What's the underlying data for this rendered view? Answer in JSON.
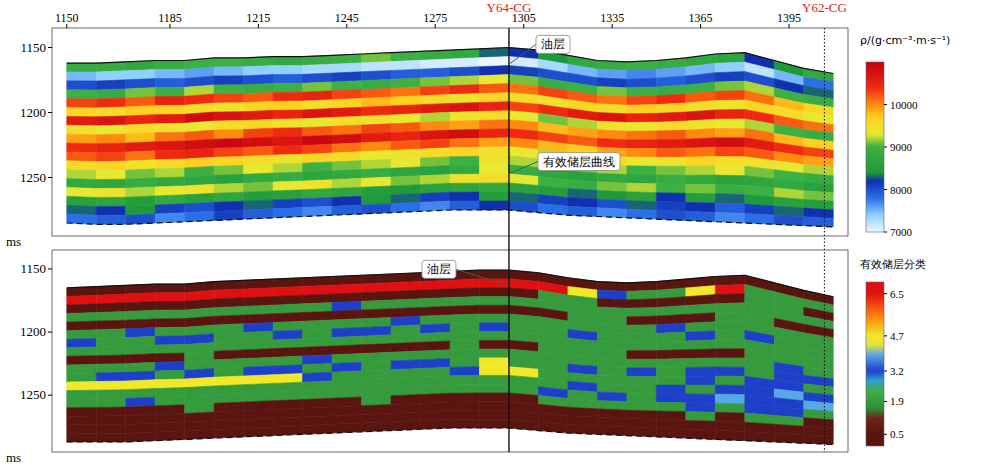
{
  "chart_data": [
    {
      "type": "heatmap",
      "x": [
        1150,
        1160,
        1170,
        1180,
        1190,
        1200,
        1210,
        1220,
        1230,
        1240,
        1250,
        1260,
        1270,
        1280,
        1290,
        1300,
        1310,
        1320,
        1330,
        1340,
        1350,
        1360,
        1370,
        1380,
        1390,
        1400,
        1410
      ],
      "xlim": [
        1145,
        1415
      ],
      "xticks": [
        1150,
        1185,
        1215,
        1245,
        1275,
        1305,
        1335,
        1365,
        1395
      ],
      "ylim": [
        1135,
        1295
      ],
      "yticks": [
        1150,
        1200,
        1250
      ],
      "y_label": "ms",
      "top": [
        1162,
        1162,
        1161,
        1160,
        1160,
        1158,
        1158,
        1157,
        1157,
        1156,
        1155,
        1154,
        1153,
        1152,
        1151,
        1150,
        1152,
        1156,
        1160,
        1161,
        1160,
        1158,
        1155,
        1154,
        1160,
        1166,
        1170
      ],
      "bottom": [
        1285,
        1286,
        1286,
        1285,
        1284,
        1283,
        1282,
        1281,
        1280,
        1279,
        1278,
        1277,
        1276,
        1275,
        1275,
        1275,
        1277,
        1279,
        1280,
        1281,
        1282,
        1283,
        1284,
        1285,
        1286,
        1287,
        1288
      ],
      "cells": [
        [
          8900,
          8900,
          8800,
          8900,
          9000,
          9000,
          8900,
          8800,
          8900,
          9000,
          9100,
          9000,
          8900,
          8800,
          8300,
          8200,
          8400,
          8800,
          8900,
          9000,
          8900,
          8800,
          8700,
          8200,
          8400,
          8800
        ],
        [
          7500,
          7400,
          7400,
          7500,
          7600,
          7500,
          7400,
          7400,
          7300,
          7300,
          7200,
          7200,
          7100,
          7100,
          7000,
          7100,
          7300,
          7500,
          7600,
          7700,
          7600,
          7500,
          7400,
          7200,
          7500,
          7800
        ],
        [
          8000,
          8100,
          8000,
          7900,
          8000,
          8100,
          8000,
          7900,
          8000,
          8100,
          8000,
          7900,
          7900,
          8000,
          8200,
          8100,
          8000,
          8000,
          8100,
          8000,
          7900,
          8000,
          8100,
          8000,
          8200,
          8300
        ],
        [
          9000,
          8900,
          9100,
          9000,
          9200,
          9000,
          8900,
          9000,
          9100,
          9000,
          8900,
          9000,
          9100,
          9200,
          9300,
          9100,
          8900,
          9000,
          9100,
          9000,
          8900,
          9000,
          9100,
          9200,
          9000,
          8900
        ],
        [
          10300,
          10400,
          10200,
          10500,
          10400,
          10300,
          10200,
          10400,
          10500,
          10300,
          10200,
          10100,
          10300,
          10400,
          10200,
          10100,
          10300,
          10200,
          10100,
          10300,
          10400,
          10200,
          10300,
          10100,
          9800,
          9600
        ],
        [
          9600,
          9500,
          9700,
          9600,
          9500,
          9400,
          9600,
          9700,
          9500,
          9600,
          9800,
          9700,
          9500,
          9400,
          9600,
          9500,
          9400,
          9600,
          9500,
          9700,
          9600,
          9500,
          9400,
          9600,
          9500,
          9300
        ],
        [
          10600,
          10700,
          10500,
          10600,
          10800,
          10700,
          10600,
          10500,
          10700,
          10600,
          10400,
          10500,
          10600,
          10700,
          10500,
          10300,
          10400,
          10600,
          10700,
          10500,
          10600,
          10700,
          10500,
          10400,
          10200,
          10100
        ],
        [
          9400,
          9300,
          9500,
          9400,
          9300,
          9500,
          9600,
          9400,
          9300,
          9500,
          9400,
          9300,
          9200,
          9400,
          9500,
          9300,
          9100,
          9200,
          9400,
          9300,
          9500,
          9400,
          9300,
          9200,
          9000,
          8900
        ],
        [
          9900,
          10000,
          9800,
          10100,
          10200,
          10000,
          10300,
          10400,
          10200,
          10100,
          10300,
          10200,
          10000,
          9900,
          10100,
          10000,
          9800,
          9900,
          10000,
          10100,
          10200,
          10000,
          9900,
          10100,
          9800,
          9700
        ],
        [
          10400,
          10500,
          10600,
          10700,
          10800,
          10900,
          10800,
          10700,
          10900,
          10800,
          10600,
          10500,
          10700,
          10800,
          10500,
          10400,
          10300,
          10200,
          10400,
          10500,
          10600,
          10700,
          10800,
          10600,
          10400,
          10300
        ],
        [
          10200,
          10300,
          10100,
          10400,
          10500,
          10300,
          10200,
          10400,
          10300,
          10100,
          10000,
          10200,
          10300,
          10100,
          9900,
          10000,
          9800,
          9700,
          9900,
          10000,
          10200,
          10100,
          10300,
          10200,
          10000,
          9900
        ],
        [
          9500,
          9600,
          9400,
          9500,
          9700,
          9600,
          9500,
          9400,
          9600,
          9500,
          9300,
          9400,
          9500,
          9600,
          9400,
          9300,
          9200,
          9400,
          9500,
          9300,
          9400,
          9600,
          9500,
          9400,
          9300,
          9200
        ],
        [
          9200,
          9300,
          9100,
          9200,
          9000,
          9100,
          9300,
          9200,
          9000,
          9100,
          9200,
          9300,
          9100,
          9000,
          9400,
          9200,
          9000,
          9100,
          9200,
          9000,
          9100,
          9200,
          9300,
          9100,
          9000,
          8900
        ],
        [
          8800,
          8700,
          8900,
          8800,
          8700,
          8600,
          8800,
          8900,
          8700,
          8800,
          8900,
          8700,
          8600,
          8800,
          9300,
          8900,
          8700,
          8600,
          8800,
          8700,
          8900,
          8800,
          8600,
          8700,
          8800,
          8600
        ],
        [
          9300,
          9400,
          9200,
          9300,
          9400,
          9200,
          9100,
          9300,
          9400,
          9200,
          9300,
          9100,
          9200,
          9400,
          9500,
          9300,
          9000,
          8900,
          9100,
          9200,
          9000,
          9100,
          8900,
          9000,
          9200,
          9100
        ],
        [
          8600,
          8700,
          8500,
          8800,
          8600,
          8700,
          8500,
          8600,
          8800,
          8700,
          8500,
          8400,
          8600,
          8700,
          8800,
          8600,
          8500,
          8300,
          8400,
          8600,
          8200,
          8500,
          8300,
          8400,
          8600,
          8500
        ],
        [
          8300,
          8200,
          8400,
          8100,
          8000,
          8200,
          8300,
          8100,
          8000,
          8200,
          8400,
          8300,
          8100,
          8200,
          8500,
          8300,
          8100,
          8200,
          8000,
          8300,
          8100,
          8200,
          7900,
          8100,
          8300,
          8200
        ],
        [
          7800,
          7900,
          8000,
          7700,
          7800,
          8100,
          7900,
          7800,
          7700,
          7900,
          8000,
          7800,
          7700,
          7900,
          8200,
          8000,
          7800,
          7900,
          7700,
          7800,
          8000,
          7900,
          7700,
          7800,
          8000,
          7900
        ]
      ],
      "colorbar": {
        "title": "ρ/(g·cm⁻³·m·s⁻¹)",
        "lim": [
          7000,
          11000
        ],
        "ticks": [
          10000,
          9000,
          8000,
          7000
        ]
      },
      "wells": [
        {
          "name": "Y64-CG",
          "x": 1300,
          "line_style": "solid"
        },
        {
          "name": "Y62-CG",
          "x": 1407,
          "line_style": "dotted"
        }
      ],
      "annotations": [
        {
          "text": "油层",
          "x": 1300,
          "y": 1163
        },
        {
          "text": "有效储层曲线",
          "x": 1300,
          "y": 1247
        }
      ]
    },
    {
      "type": "heatmap",
      "tick_labels": "y",
      "x": [
        1150,
        1160,
        1170,
        1180,
        1190,
        1200,
        1210,
        1220,
        1230,
        1240,
        1250,
        1260,
        1270,
        1280,
        1290,
        1300,
        1310,
        1320,
        1330,
        1340,
        1350,
        1360,
        1370,
        1380,
        1390,
        1400,
        1410
      ],
      "xlim": [
        1145,
        1415
      ],
      "ylim": [
        1135,
        1295
      ],
      "yticks": [
        1150,
        1200,
        1250
      ],
      "y_label": "ms",
      "top": [
        1165,
        1164,
        1163,
        1162,
        1162,
        1160,
        1159,
        1158,
        1157,
        1156,
        1155,
        1154,
        1153,
        1152,
        1151,
        1151,
        1153,
        1157,
        1160,
        1161,
        1160,
        1158,
        1156,
        1155,
        1161,
        1167,
        1172
      ],
      "bottom": [
        1287,
        1287,
        1287,
        1286,
        1285,
        1284,
        1283,
        1282,
        1281,
        1280,
        1279,
        1278,
        1277,
        1276,
        1276,
        1276,
        1278,
        1280,
        1281,
        1282,
        1283,
        1284,
        1285,
        1286,
        1287,
        1288,
        1289
      ],
      "cells": [
        [
          0.5,
          0.5,
          0.5,
          0.5,
          0.5,
          0.5,
          0.5,
          0.5,
          0.5,
          0.5,
          0.5,
          0.5,
          0.5,
          0.5,
          0.5,
          0.5,
          0.5,
          0.5,
          0.5,
          0.5,
          0.5,
          0.5,
          0.5,
          0.5,
          0.5,
          0.5
        ],
        [
          6.5,
          6.5,
          6.5,
          6.5,
          6.5,
          6.5,
          6.5,
          6.5,
          6.5,
          6.5,
          6.5,
          6.5,
          6.5,
          6.5,
          6.5,
          6.5,
          6.5,
          4.7,
          3.2,
          1.9,
          1.9,
          4.7,
          6.5,
          1.9,
          1.9,
          1.9
        ],
        [
          0.5,
          0.5,
          0.5,
          0.5,
          0.5,
          0.5,
          0.5,
          0.5,
          0.5,
          0.5,
          0.5,
          0.5,
          0.5,
          0.5,
          0.5,
          0.5,
          1.9,
          1.9,
          0.5,
          0.5,
          0.5,
          0.5,
          0.5,
          1.9,
          1.9,
          0.5
        ],
        [
          1.9,
          1.9,
          1.9,
          1.9,
          1.9,
          1.9,
          1.9,
          1.9,
          1.9,
          3.2,
          1.9,
          1.9,
          1.9,
          1.9,
          1.9,
          1.9,
          1.9,
          1.9,
          1.9,
          1.9,
          1.9,
          1.9,
          1.9,
          1.9,
          1.9,
          1.9
        ],
        [
          0.5,
          0.5,
          0.5,
          0.5,
          0.5,
          0.5,
          0.5,
          0.5,
          0.5,
          0.5,
          0.5,
          0.5,
          0.5,
          0.5,
          0.5,
          0.5,
          0.5,
          1.9,
          1.9,
          0.5,
          0.5,
          0.5,
          1.9,
          1.9,
          0.5,
          0.5
        ],
        [
          1.9,
          1.9,
          3.2,
          1.9,
          1.9,
          1.9,
          3.2,
          1.9,
          1.9,
          1.9,
          1.9,
          3.2,
          1.9,
          1.9,
          1.9,
          1.9,
          1.9,
          1.9,
          1.9,
          1.9,
          3.2,
          1.9,
          1.9,
          1.9,
          1.9,
          1.9
        ],
        [
          3.2,
          1.9,
          1.9,
          3.2,
          3.2,
          1.9,
          1.9,
          3.2,
          1.9,
          3.2,
          3.2,
          1.9,
          3.2,
          1.9,
          3.2,
          1.9,
          1.9,
          3.2,
          1.9,
          1.9,
          1.9,
          3.2,
          1.9,
          3.2,
          1.9,
          1.9
        ],
        [
          1.9,
          1.9,
          1.9,
          1.9,
          1.9,
          1.9,
          1.9,
          1.9,
          1.9,
          1.9,
          1.9,
          1.9,
          1.9,
          1.9,
          1.9,
          1.9,
          1.9,
          1.9,
          1.9,
          1.9,
          1.9,
          1.9,
          1.9,
          1.9,
          1.9,
          1.9
        ],
        [
          0.5,
          0.5,
          0.5,
          0.5,
          1.9,
          0.5,
          0.5,
          0.5,
          0.5,
          0.5,
          0.5,
          0.5,
          0.5,
          1.9,
          0.5,
          0.5,
          1.9,
          1.9,
          1.9,
          0.5,
          0.5,
          0.5,
          0.5,
          1.9,
          1.9,
          1.9
        ],
        [
          1.9,
          1.9,
          1.9,
          3.2,
          1.9,
          1.9,
          1.9,
          1.9,
          3.2,
          1.9,
          1.9,
          1.9,
          1.9,
          1.9,
          1.9,
          1.9,
          1.9,
          1.9,
          1.9,
          1.9,
          1.9,
          1.9,
          1.9,
          1.9,
          3.2,
          1.9
        ],
        [
          1.9,
          3.2,
          3.2,
          1.9,
          3.2,
          1.9,
          3.2,
          3.2,
          1.9,
          3.2,
          1.9,
          3.2,
          3.2,
          1.9,
          4.7,
          1.9,
          1.9,
          3.2,
          1.9,
          3.2,
          1.9,
          3.2,
          3.2,
          1.9,
          3.2,
          3.2
        ],
        [
          4.7,
          4.7,
          4.7,
          4.7,
          4.7,
          4.7,
          4.7,
          4.7,
          3.2,
          1.9,
          1.9,
          1.9,
          1.9,
          3.2,
          4.7,
          4.7,
          1.9,
          1.9,
          1.9,
          1.9,
          1.9,
          3.2,
          1.9,
          3.2,
          3.2,
          1.9
        ],
        [
          1.9,
          1.9,
          1.9,
          1.9,
          1.9,
          1.9,
          1.9,
          1.9,
          1.9,
          1.9,
          1.9,
          1.9,
          1.9,
          1.9,
          1.9,
          1.9,
          1.9,
          3.2,
          1.9,
          1.9,
          3.2,
          1.9,
          3.2,
          3.2,
          3.9,
          3.2
        ],
        [
          1.9,
          1.9,
          3.2,
          1.9,
          1.9,
          1.9,
          1.9,
          1.9,
          1.9,
          1.9,
          1.9,
          1.9,
          1.9,
          1.9,
          1.9,
          1.9,
          3.2,
          1.9,
          3.2,
          1.9,
          3.2,
          3.2,
          3.9,
          3.2,
          3.2,
          3.9
        ],
        [
          0.5,
          0.5,
          0.5,
          0.5,
          1.9,
          0.5,
          0.5,
          0.5,
          0.5,
          0.5,
          1.9,
          0.5,
          0.5,
          0.5,
          0.5,
          0.5,
          1.9,
          1.9,
          1.9,
          1.9,
          1.9,
          3.2,
          1.9,
          3.2,
          3.2,
          1.9
        ],
        [
          0.5,
          0.5,
          0.5,
          0.5,
          0.5,
          0.5,
          0.5,
          0.5,
          0.5,
          0.5,
          0.5,
          0.5,
          0.5,
          0.5,
          0.5,
          0.5,
          0.5,
          0.5,
          0.5,
          0.5,
          0.5,
          1.9,
          0.5,
          1.9,
          1.9,
          0.5
        ],
        [
          0.5,
          0.5,
          0.5,
          0.5,
          0.5,
          0.5,
          0.5,
          0.5,
          0.5,
          0.5,
          0.5,
          0.5,
          0.5,
          0.5,
          0.5,
          0.5,
          0.5,
          0.5,
          0.5,
          0.5,
          0.5,
          0.5,
          0.5,
          0.5,
          0.5,
          0.5
        ],
        [
          0.5,
          0.5,
          0.5,
          0.5,
          0.5,
          0.5,
          0.5,
          0.5,
          0.5,
          0.5,
          0.5,
          0.5,
          0.5,
          0.5,
          0.5,
          0.5,
          0.5,
          0.5,
          0.5,
          0.5,
          0.5,
          0.5,
          0.5,
          0.5,
          0.5,
          0.5
        ]
      ],
      "colorbar": {
        "title": "有效储层分类",
        "lim": [
          0,
          7
        ],
        "ticks": [
          6.5,
          4.7,
          3.2,
          1.9,
          0.5
        ]
      },
      "annotations": [
        {
          "text": "油层",
          "x": 1300,
          "y": 1163
        }
      ]
    }
  ]
}
